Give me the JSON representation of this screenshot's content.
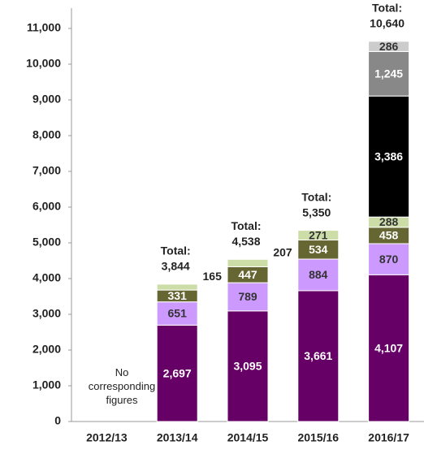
{
  "chart_data": {
    "type": "stacked-bar",
    "categories": [
      "2012/13",
      "2013/14",
      "2014/15",
      "2015/16",
      "2016/17"
    ],
    "series": [
      {
        "color": "#660066",
        "label_color": "#ffffff",
        "values": [
          null,
          2697,
          3095,
          3661,
          4107
        ],
        "value_labels": [
          null,
          "2,697",
          "3,095",
          "3,661",
          "4,107"
        ]
      },
      {
        "color": "#cc99ff",
        "label_color": "#333333",
        "values": [
          null,
          651,
          789,
          884,
          870
        ]
      },
      {
        "color": "#666633",
        "label_color": "#ffffff",
        "values": [
          null,
          331,
          447,
          534,
          458
        ]
      },
      {
        "color": "#ccdda8",
        "label_color": "#333333",
        "values": [
          null,
          165,
          207,
          271,
          288
        ]
      },
      {
        "color": "#000000",
        "label_color": "#ffffff",
        "values": [
          null,
          null,
          null,
          null,
          3386
        ],
        "value_labels": [
          null,
          null,
          null,
          null,
          "3,386"
        ]
      },
      {
        "color": "#888888",
        "label_color": "#ffffff",
        "values": [
          null,
          null,
          null,
          null,
          1245
        ],
        "value_labels": [
          null,
          null,
          null,
          null,
          "1,245"
        ]
      },
      {
        "color": "#cccccc",
        "label_color": "#333333",
        "values": [
          null,
          null,
          null,
          null,
          286
        ]
      }
    ],
    "total_title": "Total:",
    "totals": [
      null,
      3844,
      4538,
      5350,
      10640
    ],
    "total_labels": [
      null,
      "3,844",
      "4,538",
      "5,350",
      "10,640"
    ],
    "annotation": "No corresponding figures",
    "ylim": [
      0,
      11000
    ],
    "yticks": [
      0,
      {
        "value": 1000,
        "label": "1,000"
      },
      {
        "value": 2000,
        "label": "2,000"
      },
      {
        "value": 3000,
        "label": "3,000"
      },
      {
        "value": 4000,
        "label": "4,000"
      },
      {
        "value": 5000,
        "label": "5,000"
      },
      {
        "value": 6000,
        "label": "6,000"
      },
      {
        "value": 7000,
        "label": "7,000"
      },
      {
        "value": 8000,
        "label": "8,000"
      },
      {
        "value": 9000,
        "label": "9,000"
      },
      {
        "value": 10000,
        "label": "10,000"
      },
      {
        "value": 11000,
        "label": "11,000"
      }
    ]
  }
}
